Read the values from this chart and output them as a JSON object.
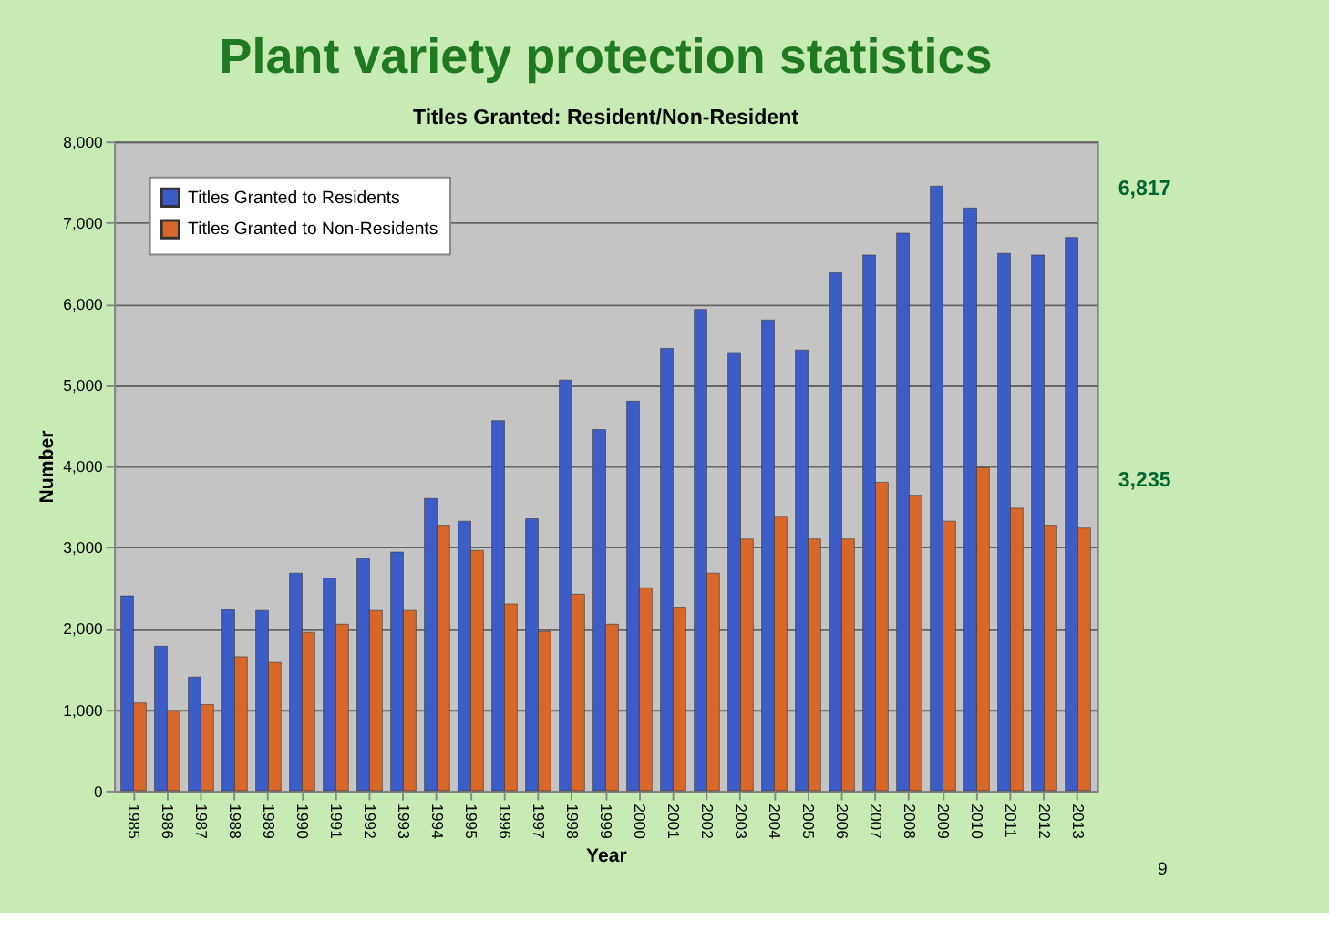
{
  "chart_data": {
    "type": "bar",
    "title": "Plant variety protection statistics",
    "subtitle": "Titles Granted:  Resident/Non-Resident",
    "xlabel": "Year",
    "ylabel": "Number",
    "categories": [
      "1985",
      "1986",
      "1987",
      "1988",
      "1989",
      "1990",
      "1991",
      "1992",
      "1993",
      "1994",
      "1995",
      "1996",
      "1997",
      "1998",
      "1999",
      "2000",
      "2001",
      "2002",
      "2003",
      "2004",
      "2005",
      "2006",
      "2007",
      "2008",
      "2009",
      "2010",
      "2011",
      "2012",
      "2013"
    ],
    "series": [
      {
        "name": "Titles Granted to Residents",
        "color": "#3c5cc8",
        "values": [
          2400,
          1780,
          1400,
          2230,
          2220,
          2680,
          2620,
          2860,
          2940,
          3600,
          3320,
          4560,
          3350,
          5060,
          4450,
          4800,
          5450,
          5930,
          5400,
          5800,
          5430,
          6380,
          6600,
          6870,
          7450,
          7180,
          6620,
          6600,
          6817
        ]
      },
      {
        "name": "Titles Granted to Non-Residents",
        "color": "#d8682a",
        "values": [
          1080,
          980,
          1060,
          1650,
          1580,
          1950,
          2050,
          2220,
          2220,
          3270,
          2960,
          2300,
          1960,
          2420,
          2050,
          2500,
          2260,
          2680,
          3100,
          3380,
          3100,
          3100,
          3800,
          3640,
          3320,
          3980,
          3480,
          3270,
          3235
        ]
      }
    ],
    "ylim": [
      0,
      8000
    ],
    "yticks": [
      {
        "value": 0,
        "label": "0"
      },
      {
        "value": 1000,
        "label": "1,000"
      },
      {
        "value": 2000,
        "label": "2,000"
      },
      {
        "value": 3000,
        "label": "3,000"
      },
      {
        "value": 4000,
        "label": "4,000"
      },
      {
        "value": 5000,
        "label": "5,000"
      },
      {
        "value": 6000,
        "label": "6,000"
      },
      {
        "value": 7000,
        "label": "7,000"
      },
      {
        "value": 8000,
        "label": "8,000"
      }
    ],
    "grid": "y",
    "legend": "top left",
    "annotations": [
      {
        "text": "6,817",
        "x": "2013",
        "y": 6817
      },
      {
        "text": "3,235",
        "x": "2013",
        "y": 3235
      },
      "9"
    ]
  }
}
